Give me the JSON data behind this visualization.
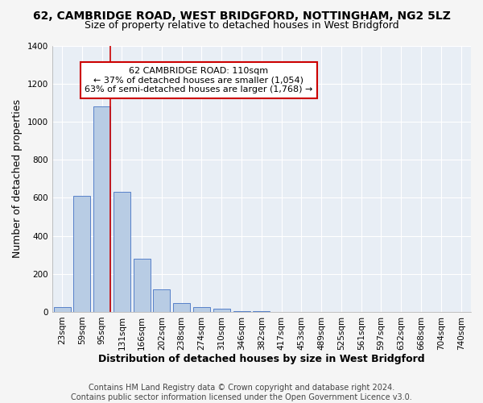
{
  "title": "62, CAMBRIDGE ROAD, WEST BRIDGFORD, NOTTINGHAM, NG2 5LZ",
  "subtitle": "Size of property relative to detached houses in West Bridgford",
  "xlabel": "Distribution of detached houses by size in West Bridgford",
  "ylabel": "Number of detached properties",
  "footer_line1": "Contains HM Land Registry data © Crown copyright and database right 2024.",
  "footer_line2": "Contains public sector information licensed under the Open Government Licence v3.0.",
  "bar_categories": [
    "23sqm",
    "59sqm",
    "95sqm",
    "131sqm",
    "166sqm",
    "202sqm",
    "238sqm",
    "274sqm",
    "310sqm",
    "346sqm",
    "382sqm",
    "417sqm",
    "453sqm",
    "489sqm",
    "525sqm",
    "561sqm",
    "597sqm",
    "632sqm",
    "668sqm",
    "704sqm",
    "740sqm"
  ],
  "bar_values": [
    27,
    610,
    1080,
    630,
    280,
    120,
    45,
    25,
    15,
    5,
    3,
    0,
    0,
    0,
    0,
    0,
    0,
    0,
    0,
    0,
    0
  ],
  "bar_color": "#b8cce4",
  "bar_edge_color": "#4472c4",
  "background_color": "#e8eef5",
  "grid_color": "#ffffff",
  "ylim": [
    0,
    1400
  ],
  "yticks": [
    0,
    200,
    400,
    600,
    800,
    1000,
    1200,
    1400
  ],
  "property_label": "62 CAMBRIDGE ROAD: 110sqm",
  "annotation_line1": "← 37% of detached houses are smaller (1,054)",
  "annotation_line2": "63% of semi-detached houses are larger (1,768) →",
  "annotation_box_color": "#ffffff",
  "annotation_box_edge": "#cc0000",
  "vline_color": "#cc0000",
  "title_fontsize": 10,
  "subtitle_fontsize": 9,
  "axis_label_fontsize": 9,
  "tick_fontsize": 7.5,
  "annotation_fontsize": 8,
  "footer_fontsize": 7
}
